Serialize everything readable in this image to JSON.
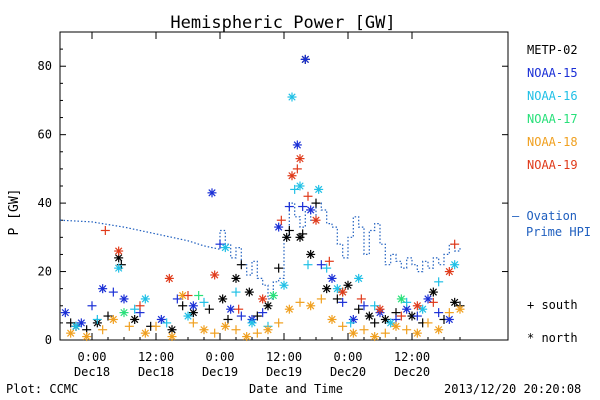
{
  "chart_data": {
    "type": "scatter",
    "title": "Hemispheric Power [GW]",
    "xlabel": "Date and Time",
    "ylabel": "P [GW]",
    "xlim": [
      -6,
      78
    ],
    "ylim": [
      0,
      90
    ],
    "x_unit": "hours from 2013-12-18 00:00 UT",
    "yticks": [
      0,
      20,
      40,
      60,
      80
    ],
    "xticks": [
      {
        "x": 0,
        "label1": "0:00",
        "label2": "Dec18"
      },
      {
        "x": 12,
        "label1": "12:00",
        "label2": "Dec18"
      },
      {
        "x": 24,
        "label1": "0:00",
        "label2": "Dec19"
      },
      {
        "x": 36,
        "label1": "12:00",
        "label2": "Dec19"
      },
      {
        "x": 48,
        "label1": "0:00",
        "label2": "Dec20"
      },
      {
        "x": 60,
        "label1": "12:00",
        "label2": "Dec20"
      }
    ],
    "legend": [
      {
        "name": "METP-02",
        "color": "#000000"
      },
      {
        "name": "NOAA-15",
        "color": "#1a2fd6"
      },
      {
        "name": "NOAA-16",
        "color": "#20c0e6"
      },
      {
        "name": "NOAA-17",
        "color": "#28e07a"
      },
      {
        "name": "NOAA-18",
        "color": "#f0a020"
      },
      {
        "name": "NOAA-19",
        "color": "#e03a1a"
      }
    ],
    "ovation_label_1": "— Ovation",
    "ovation_label_2": "Prime HPI",
    "ovation_color": "#1f5fbf",
    "ovation_series": [
      [
        -6,
        35
      ],
      [
        0,
        34.5
      ],
      [
        6,
        33
      ],
      [
        12,
        31
      ],
      [
        18,
        29
      ],
      [
        21,
        27.5
      ],
      [
        24,
        26.5
      ],
      [
        24,
        32
      ],
      [
        25,
        32
      ],
      [
        25,
        28
      ],
      [
        26,
        28
      ],
      [
        26,
        24
      ],
      [
        27,
        24
      ],
      [
        27,
        27
      ],
      [
        28,
        27
      ],
      [
        28,
        22
      ],
      [
        29,
        22
      ],
      [
        29,
        19
      ],
      [
        30,
        19
      ],
      [
        30,
        23
      ],
      [
        31,
        23
      ],
      [
        31,
        18
      ],
      [
        32,
        18
      ],
      [
        32,
        16
      ],
      [
        33,
        16
      ],
      [
        33,
        12
      ],
      [
        34,
        12
      ],
      [
        34,
        17
      ],
      [
        35,
        17
      ],
      [
        35,
        18
      ],
      [
        36,
        18
      ],
      [
        36,
        30
      ],
      [
        37,
        30
      ],
      [
        37,
        40
      ],
      [
        38,
        40
      ],
      [
        38,
        36
      ],
      [
        39,
        36
      ],
      [
        39,
        33
      ],
      [
        40,
        33
      ],
      [
        40,
        38
      ],
      [
        41,
        38
      ],
      [
        41,
        35
      ],
      [
        42,
        35
      ],
      [
        42,
        40
      ],
      [
        43,
        40
      ],
      [
        43,
        38
      ],
      [
        44,
        38
      ],
      [
        44,
        34
      ],
      [
        45,
        34
      ],
      [
        45,
        33
      ],
      [
        46,
        33
      ],
      [
        46,
        28
      ],
      [
        47,
        28
      ],
      [
        47,
        24
      ],
      [
        48,
        24
      ],
      [
        48,
        30
      ],
      [
        49,
        30
      ],
      [
        49,
        36
      ],
      [
        50,
        36
      ],
      [
        50,
        33
      ],
      [
        51,
        33
      ],
      [
        51,
        25
      ],
      [
        52,
        25
      ],
      [
        52,
        32
      ],
      [
        53,
        32
      ],
      [
        53,
        34
      ],
      [
        54,
        34
      ],
      [
        54,
        28
      ],
      [
        55,
        28
      ],
      [
        55,
        22
      ],
      [
        56,
        22
      ],
      [
        56,
        25
      ],
      [
        57,
        25
      ],
      [
        57,
        23
      ],
      [
        58,
        23
      ],
      [
        58,
        21
      ],
      [
        59,
        21
      ],
      [
        59,
        24
      ],
      [
        60,
        24
      ],
      [
        60,
        22
      ],
      [
        61,
        22
      ],
      [
        61,
        20
      ],
      [
        62,
        20
      ],
      [
        62,
        23
      ],
      [
        63,
        23
      ],
      [
        63,
        21
      ],
      [
        64,
        21
      ],
      [
        64,
        24
      ],
      [
        65,
        24
      ],
      [
        65,
        22
      ],
      [
        66,
        22
      ],
      [
        66,
        25
      ],
      [
        67,
        25
      ],
      [
        67,
        28
      ],
      [
        68,
        28
      ],
      [
        68,
        26
      ],
      [
        69,
        26
      ],
      [
        69,
        27
      ]
    ],
    "south_marker_label": "+ south",
    "north_marker_label": "* north",
    "points": [
      {
        "sat": 0,
        "m": "+",
        "x": -4,
        "y": 5
      },
      {
        "sat": 0,
        "m": "*",
        "x": -3,
        "y": 4
      },
      {
        "sat": 0,
        "m": "+",
        "x": -1,
        "y": 3
      },
      {
        "sat": 0,
        "m": "*",
        "x": 1,
        "y": 5
      },
      {
        "sat": 0,
        "m": "+",
        "x": 3,
        "y": 7
      },
      {
        "sat": 0,
        "m": "*",
        "x": 5,
        "y": 24
      },
      {
        "sat": 0,
        "m": "+",
        "x": 5.5,
        "y": 22
      },
      {
        "sat": 0,
        "m": "*",
        "x": 8,
        "y": 6
      },
      {
        "sat": 0,
        "m": "+",
        "x": 11,
        "y": 4
      },
      {
        "sat": 0,
        "m": "*",
        "x": 15,
        "y": 3
      },
      {
        "sat": 0,
        "m": "+",
        "x": 17,
        "y": 10
      },
      {
        "sat": 0,
        "m": "*",
        "x": 19,
        "y": 8
      },
      {
        "sat": 0,
        "m": "+",
        "x": 22,
        "y": 9
      },
      {
        "sat": 0,
        "m": "*",
        "x": 24.5,
        "y": 12
      },
      {
        "sat": 0,
        "m": "+",
        "x": 25.5,
        "y": 6
      },
      {
        "sat": 0,
        "m": "*",
        "x": 27,
        "y": 18
      },
      {
        "sat": 0,
        "m": "+",
        "x": 28,
        "y": 22
      },
      {
        "sat": 0,
        "m": "*",
        "x": 29.5,
        "y": 14
      },
      {
        "sat": 0,
        "m": "+",
        "x": 31,
        "y": 7
      },
      {
        "sat": 0,
        "m": "*",
        "x": 33,
        "y": 10
      },
      {
        "sat": 0,
        "m": "+",
        "x": 35,
        "y": 21
      },
      {
        "sat": 0,
        "m": "*",
        "x": 36.5,
        "y": 30
      },
      {
        "sat": 0,
        "m": "+",
        "x": 37,
        "y": 32
      },
      {
        "sat": 0,
        "m": "*",
        "x": 39,
        "y": 30
      },
      {
        "sat": 0,
        "m": "+",
        "x": 39.5,
        "y": 31
      },
      {
        "sat": 0,
        "m": "*",
        "x": 41,
        "y": 25
      },
      {
        "sat": 0,
        "m": "+",
        "x": 42,
        "y": 40
      },
      {
        "sat": 0,
        "m": "*",
        "x": 44,
        "y": 15
      },
      {
        "sat": 0,
        "m": "+",
        "x": 46,
        "y": 12
      },
      {
        "sat": 0,
        "m": "*",
        "x": 48,
        "y": 16
      },
      {
        "sat": 0,
        "m": "+",
        "x": 50,
        "y": 9
      },
      {
        "sat": 0,
        "m": "*",
        "x": 52,
        "y": 7
      },
      {
        "sat": 0,
        "m": "+",
        "x": 53,
        "y": 5
      },
      {
        "sat": 0,
        "m": "*",
        "x": 55,
        "y": 6
      },
      {
        "sat": 0,
        "m": "+",
        "x": 57,
        "y": 8
      },
      {
        "sat": 0,
        "m": "*",
        "x": 60,
        "y": 7
      },
      {
        "sat": 0,
        "m": "+",
        "x": 62,
        "y": 5
      },
      {
        "sat": 0,
        "m": "*",
        "x": 64,
        "y": 14
      },
      {
        "sat": 0,
        "m": "+",
        "x": 66,
        "y": 6
      },
      {
        "sat": 0,
        "m": "*",
        "x": 68,
        "y": 11
      },
      {
        "sat": 0,
        "m": "+",
        "x": 69,
        "y": 10
      },
      {
        "sat": 1,
        "m": "*",
        "x": -5,
        "y": 8
      },
      {
        "sat": 1,
        "m": "*",
        "x": -2,
        "y": 5
      },
      {
        "sat": 1,
        "m": "+",
        "x": 0,
        "y": 10
      },
      {
        "sat": 1,
        "m": "*",
        "x": 2,
        "y": 15
      },
      {
        "sat": 1,
        "m": "+",
        "x": 4,
        "y": 14
      },
      {
        "sat": 1,
        "m": "*",
        "x": 6,
        "y": 12
      },
      {
        "sat": 1,
        "m": "+",
        "x": 9,
        "y": 8
      },
      {
        "sat": 1,
        "m": "*",
        "x": 13,
        "y": 6
      },
      {
        "sat": 1,
        "m": "+",
        "x": 16,
        "y": 12
      },
      {
        "sat": 1,
        "m": "*",
        "x": 19,
        "y": 10
      },
      {
        "sat": 1,
        "m": "*",
        "x": 22.5,
        "y": 43
      },
      {
        "sat": 1,
        "m": "+",
        "x": 24,
        "y": 28
      },
      {
        "sat": 1,
        "m": "*",
        "x": 26,
        "y": 9
      },
      {
        "sat": 1,
        "m": "+",
        "x": 28,
        "y": 7
      },
      {
        "sat": 1,
        "m": "*",
        "x": 30,
        "y": 6
      },
      {
        "sat": 1,
        "m": "+",
        "x": 32,
        "y": 8
      },
      {
        "sat": 1,
        "m": "*",
        "x": 35,
        "y": 33
      },
      {
        "sat": 1,
        "m": "+",
        "x": 37,
        "y": 39
      },
      {
        "sat": 1,
        "m": "*",
        "x": 38.5,
        "y": 57
      },
      {
        "sat": 1,
        "m": "+",
        "x": 39.5,
        "y": 39
      },
      {
        "sat": 1,
        "m": "*",
        "x": 41,
        "y": 38
      },
      {
        "sat": 1,
        "m": "+",
        "x": 43,
        "y": 22
      },
      {
        "sat": 1,
        "m": "*",
        "x": 45,
        "y": 18
      },
      {
        "sat": 1,
        "m": "+",
        "x": 47,
        "y": 11
      },
      {
        "sat": 1,
        "m": "*",
        "x": 49,
        "y": 6
      },
      {
        "sat": 1,
        "m": "+",
        "x": 51,
        "y": 10
      },
      {
        "sat": 1,
        "m": "*",
        "x": 54,
        "y": 8
      },
      {
        "sat": 1,
        "m": "+",
        "x": 57,
        "y": 6
      },
      {
        "sat": 1,
        "m": "*",
        "x": 59,
        "y": 9
      },
      {
        "sat": 1,
        "m": "+",
        "x": 61,
        "y": 7
      },
      {
        "sat": 1,
        "m": "*",
        "x": 63,
        "y": 12
      },
      {
        "sat": 1,
        "m": "+",
        "x": 65,
        "y": 8
      },
      {
        "sat": 1,
        "m": "*",
        "x": 67,
        "y": 6
      },
      {
        "sat": 2,
        "m": "*",
        "x": -3,
        "y": 4
      },
      {
        "sat": 2,
        "m": "+",
        "x": 1,
        "y": 6
      },
      {
        "sat": 2,
        "m": "*",
        "x": 5,
        "y": 21
      },
      {
        "sat": 2,
        "m": "+",
        "x": 8,
        "y": 9
      },
      {
        "sat": 2,
        "m": "*",
        "x": 10,
        "y": 12
      },
      {
        "sat": 2,
        "m": "+",
        "x": 14,
        "y": 5
      },
      {
        "sat": 2,
        "m": "*",
        "x": 18,
        "y": 7
      },
      {
        "sat": 2,
        "m": "+",
        "x": 21,
        "y": 11
      },
      {
        "sat": 2,
        "m": "*",
        "x": 25,
        "y": 27
      },
      {
        "sat": 2,
        "m": "+",
        "x": 27,
        "y": 14
      },
      {
        "sat": 2,
        "m": "*",
        "x": 30,
        "y": 5
      },
      {
        "sat": 2,
        "m": "+",
        "x": 33,
        "y": 4
      },
      {
        "sat": 2,
        "m": "*",
        "x": 36,
        "y": 16
      },
      {
        "sat": 2,
        "m": "*",
        "x": 37.5,
        "y": 71
      },
      {
        "sat": 2,
        "m": "+",
        "x": 38,
        "y": 44
      },
      {
        "sat": 2,
        "m": "*",
        "x": 39,
        "y": 45
      },
      {
        "sat": 2,
        "m": "+",
        "x": 40.5,
        "y": 22
      },
      {
        "sat": 2,
        "m": "*",
        "x": 42.5,
        "y": 44
      },
      {
        "sat": 2,
        "m": "+",
        "x": 44,
        "y": 21
      },
      {
        "sat": 2,
        "m": "*",
        "x": 46,
        "y": 15
      },
      {
        "sat": 2,
        "m": "+",
        "x": 48.5,
        "y": 5
      },
      {
        "sat": 2,
        "m": "*",
        "x": 50,
        "y": 18
      },
      {
        "sat": 2,
        "m": "+",
        "x": 53,
        "y": 10
      },
      {
        "sat": 2,
        "m": "*",
        "x": 56,
        "y": 5
      },
      {
        "sat": 2,
        "m": "+",
        "x": 59,
        "y": 11
      },
      {
        "sat": 2,
        "m": "*",
        "x": 62,
        "y": 9
      },
      {
        "sat": 2,
        "m": "+",
        "x": 65,
        "y": 17
      },
      {
        "sat": 2,
        "m": "*",
        "x": 68,
        "y": 22
      },
      {
        "sat": 3,
        "m": "*",
        "x": 6,
        "y": 8
      },
      {
        "sat": 3,
        "m": "+",
        "x": 20,
        "y": 13
      },
      {
        "sat": 3,
        "m": "*",
        "x": 34,
        "y": 13
      },
      {
        "sat": 3,
        "m": "+",
        "x": 47,
        "y": 14
      },
      {
        "sat": 3,
        "m": "*",
        "x": 58,
        "y": 12
      },
      {
        "sat": 4,
        "m": "*",
        "x": -4,
        "y": 2
      },
      {
        "sat": 4,
        "m": "*",
        "x": -1,
        "y": 1
      },
      {
        "sat": 4,
        "m": "+",
        "x": 2,
        "y": 3
      },
      {
        "sat": 4,
        "m": "*",
        "x": 4,
        "y": 6
      },
      {
        "sat": 4,
        "m": "+",
        "x": 7,
        "y": 4
      },
      {
        "sat": 4,
        "m": "*",
        "x": 10,
        "y": 2
      },
      {
        "sat": 4,
        "m": "+",
        "x": 12,
        "y": 4
      },
      {
        "sat": 4,
        "m": "*",
        "x": 15,
        "y": 1
      },
      {
        "sat": 4,
        "m": "*",
        "x": 17,
        "y": 13
      },
      {
        "sat": 4,
        "m": "+",
        "x": 19,
        "y": 5
      },
      {
        "sat": 4,
        "m": "*",
        "x": 21,
        "y": 3
      },
      {
        "sat": 4,
        "m": "+",
        "x": 23,
        "y": 2
      },
      {
        "sat": 4,
        "m": "*",
        "x": 25,
        "y": 4
      },
      {
        "sat": 4,
        "m": "+",
        "x": 27,
        "y": 3
      },
      {
        "sat": 4,
        "m": "*",
        "x": 29,
        "y": 1
      },
      {
        "sat": 4,
        "m": "+",
        "x": 31,
        "y": 2
      },
      {
        "sat": 4,
        "m": "*",
        "x": 33,
        "y": 3
      },
      {
        "sat": 4,
        "m": "+",
        "x": 35,
        "y": 5
      },
      {
        "sat": 4,
        "m": "*",
        "x": 37,
        "y": 9
      },
      {
        "sat": 4,
        "m": "+",
        "x": 39,
        "y": 11
      },
      {
        "sat": 4,
        "m": "*",
        "x": 41,
        "y": 10
      },
      {
        "sat": 4,
        "m": "+",
        "x": 43,
        "y": 12
      },
      {
        "sat": 4,
        "m": "*",
        "x": 45,
        "y": 6
      },
      {
        "sat": 4,
        "m": "+",
        "x": 47,
        "y": 4
      },
      {
        "sat": 4,
        "m": "*",
        "x": 49,
        "y": 2
      },
      {
        "sat": 4,
        "m": "+",
        "x": 51,
        "y": 3
      },
      {
        "sat": 4,
        "m": "*",
        "x": 53,
        "y": 1
      },
      {
        "sat": 4,
        "m": "+",
        "x": 55,
        "y": 2
      },
      {
        "sat": 4,
        "m": "*",
        "x": 57,
        "y": 4
      },
      {
        "sat": 4,
        "m": "+",
        "x": 59,
        "y": 3
      },
      {
        "sat": 4,
        "m": "*",
        "x": 61,
        "y": 2
      },
      {
        "sat": 4,
        "m": "+",
        "x": 63,
        "y": 5
      },
      {
        "sat": 4,
        "m": "*",
        "x": 65,
        "y": 3
      },
      {
        "sat": 4,
        "m": "+",
        "x": 67,
        "y": 8
      },
      {
        "sat": 4,
        "m": "*",
        "x": 69,
        "y": 9
      },
      {
        "sat": 5,
        "m": "+",
        "x": 2.5,
        "y": 32
      },
      {
        "sat": 5,
        "m": "*",
        "x": 5,
        "y": 26
      },
      {
        "sat": 5,
        "m": "+",
        "x": 9,
        "y": 10
      },
      {
        "sat": 5,
        "m": "*",
        "x": 14.5,
        "y": 18
      },
      {
        "sat": 5,
        "m": "+",
        "x": 18,
        "y": 13
      },
      {
        "sat": 5,
        "m": "*",
        "x": 23,
        "y": 19
      },
      {
        "sat": 5,
        "m": "+",
        "x": 27.5,
        "y": 9
      },
      {
        "sat": 5,
        "m": "*",
        "x": 32,
        "y": 12
      },
      {
        "sat": 5,
        "m": "+",
        "x": 35.5,
        "y": 35
      },
      {
        "sat": 5,
        "m": "*",
        "x": 37.5,
        "y": 48
      },
      {
        "sat": 5,
        "m": "+",
        "x": 38.5,
        "y": 50
      },
      {
        "sat": 5,
        "m": "*",
        "x": 39,
        "y": 53
      },
      {
        "sat": 5,
        "m": "+",
        "x": 40.5,
        "y": 42
      },
      {
        "sat": 5,
        "m": "*",
        "x": 42,
        "y": 35
      },
      {
        "sat": 5,
        "m": "+",
        "x": 44.5,
        "y": 23
      },
      {
        "sat": 5,
        "m": "*",
        "x": 47,
        "y": 14
      },
      {
        "sat": 5,
        "m": "+",
        "x": 50.5,
        "y": 12
      },
      {
        "sat": 5,
        "m": "*",
        "x": 54,
        "y": 9
      },
      {
        "sat": 5,
        "m": "+",
        "x": 58,
        "y": 7
      },
      {
        "sat": 5,
        "m": "*",
        "x": 61,
        "y": 10
      },
      {
        "sat": 5,
        "m": "+",
        "x": 64,
        "y": 11
      },
      {
        "sat": 5,
        "m": "*",
        "x": 67,
        "y": 20
      },
      {
        "sat": 5,
        "m": "+",
        "x": 68,
        "y": 28
      },
      {
        "sat": 0,
        "m": "*",
        "x": 40,
        "y": 82
      },
      {
        "sat": 1,
        "m": "*",
        "x": 40,
        "y": 82
      }
    ],
    "peak_point": {
      "sat": 1,
      "m": "*",
      "x": 40,
      "y": 82
    }
  },
  "footer": {
    "plot_credit": "Plot: CCMC",
    "timestamp": "2013/12/20 20:20:08"
  }
}
